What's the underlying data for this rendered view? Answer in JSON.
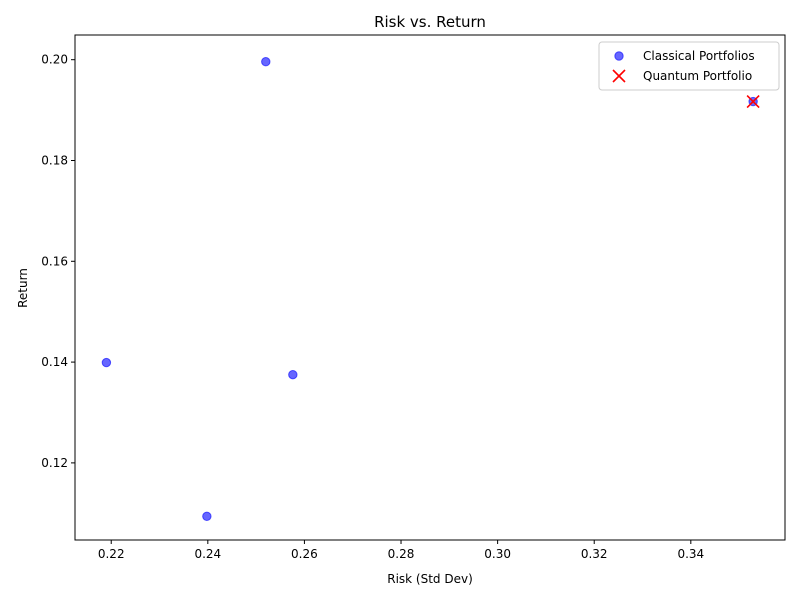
{
  "chart_data": {
    "type": "scatter",
    "title": "Risk vs. Return",
    "xlabel": "Risk (Std Dev)",
    "ylabel": "Return",
    "xlim": [
      0.2125,
      0.3595
    ],
    "ylim": [
      0.1047,
      0.2049
    ],
    "xticks": [
      0.22,
      0.24,
      0.26,
      0.28,
      0.3,
      0.32,
      0.34
    ],
    "xtick_labels": [
      "0.22",
      "0.24",
      "0.26",
      "0.28",
      "0.30",
      "0.32",
      "0.34"
    ],
    "yticks": [
      0.12,
      0.14,
      0.16,
      0.18,
      0.2
    ],
    "ytick_labels": [
      "0.12",
      "0.14",
      "0.16",
      "0.18",
      "0.20"
    ],
    "grid": false,
    "legend_position": "top-right",
    "series": [
      {
        "name": "Classical Portfolios",
        "marker": "circle",
        "color": "#0000ff",
        "x": [
          0.252,
          0.219,
          0.2576,
          0.2398,
          0.3529
        ],
        "y": [
          0.1996,
          0.1399,
          0.1375,
          0.1094,
          0.1917
        ]
      },
      {
        "name": "Quantum Portfolio",
        "marker": "x",
        "color": "#ff0000",
        "x": [
          0.3529
        ],
        "y": [
          0.1917
        ]
      }
    ]
  }
}
